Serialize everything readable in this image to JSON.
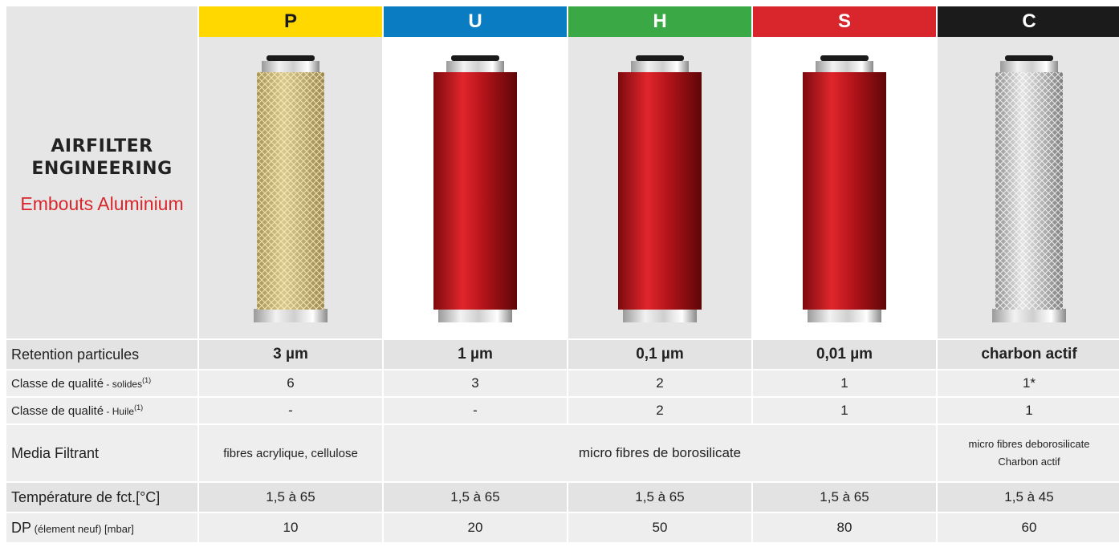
{
  "brand": {
    "title": "AIRFILTER ENGINEERING",
    "subtitle": "Embouts Aluminium"
  },
  "columns": [
    {
      "letter": "P",
      "color": "#ffd800",
      "element": "yellow-mesh-filter-element"
    },
    {
      "letter": "U",
      "color": "#0a7dc2",
      "element": "red-filter-element"
    },
    {
      "letter": "H",
      "color": "#3aa845",
      "element": "red-filter-element"
    },
    {
      "letter": "S",
      "color": "#d9262c",
      "element": "red-filter-element"
    },
    {
      "letter": "C",
      "color": "#1b1b1b",
      "element": "silver-mesh-filter-element"
    }
  ],
  "rows": {
    "retention": {
      "label": "Retention particules",
      "values": [
        "3 µm",
        "1 µm",
        "0,1 µm",
        "0,01 µm",
        "charbon actif"
      ]
    },
    "solides": {
      "label": "Classe de qualité",
      "label_small": " - solides",
      "sup": "(1)",
      "values": [
        "6",
        "3",
        "2",
        "1",
        "1*"
      ]
    },
    "huile": {
      "label": "Classe de qualité",
      "label_small": " - Huile",
      "sup": "(1)",
      "values": [
        "-",
        "-",
        "2",
        "1",
        "1"
      ]
    },
    "media": {
      "label": "Media Filtrant",
      "p": "fibres acrylique, cellulose",
      "ush": "micro fibres de borosilicate",
      "c_line1": "micro fibres deborosilicate",
      "c_line2": "Charbon actif"
    },
    "temperature": {
      "label": "Température de fct.[°C]",
      "values": [
        "1,5 à 65",
        "1,5 à 65",
        "1,5 à 65",
        "1,5 à 65",
        "1,5 à 45"
      ]
    },
    "dp": {
      "label": "DP",
      "label_small": " (élement neuf) [mbar]",
      "values": [
        "10",
        "20",
        "50",
        "80",
        "60"
      ]
    }
  }
}
